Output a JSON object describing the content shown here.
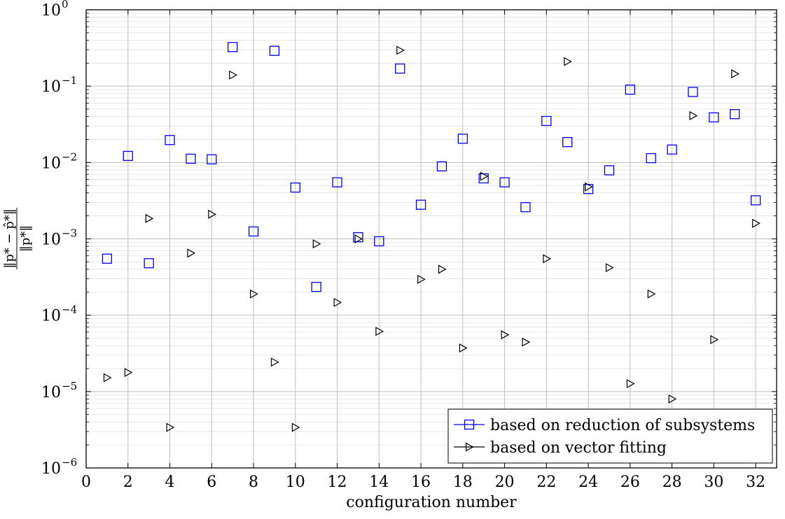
{
  "chart_data": {
    "type": "scatter",
    "xlabel": "configuration number",
    "ylabel": {
      "numerator": "‖p* − p̂*‖",
      "denominator": "‖p*‖"
    },
    "xlim": [
      0,
      33
    ],
    "ylim": [
      1e-06,
      1
    ],
    "yscale": "log",
    "x_ticks": [
      0,
      2,
      4,
      6,
      8,
      10,
      12,
      14,
      16,
      18,
      20,
      22,
      24,
      26,
      28,
      30,
      32
    ],
    "y_ticks": [
      {
        "base": "10",
        "exp": "0",
        "value": 1
      },
      {
        "base": "10",
        "exp": "−1",
        "value": 0.1
      },
      {
        "base": "10",
        "exp": "−2",
        "value": 0.01
      },
      {
        "base": "10",
        "exp": "−3",
        "value": 0.001
      },
      {
        "base": "10",
        "exp": "−4",
        "value": 0.0001
      },
      {
        "base": "10",
        "exp": "−5",
        "value": 1e-05
      },
      {
        "base": "10",
        "exp": "−6",
        "value": 1e-06
      }
    ],
    "grid": true,
    "legend_position": "bottom-right",
    "series": [
      {
        "name": "based on reduction of subsystems",
        "marker": "square",
        "color": "#0000ff",
        "x": [
          1,
          2,
          3,
          4,
          5,
          6,
          7,
          8,
          9,
          10,
          11,
          12,
          13,
          14,
          15,
          16,
          17,
          18,
          19,
          20,
          21,
          22,
          23,
          24,
          25,
          26,
          27,
          28,
          29,
          30,
          31,
          32
        ],
        "y": [
          0.00055,
          0.0122,
          0.00048,
          0.0197,
          0.0112,
          0.011,
          0.325,
          0.00125,
          0.29,
          0.0047,
          0.000235,
          0.0055,
          0.00105,
          0.00093,
          0.17,
          0.0028,
          0.0089,
          0.0205,
          0.0062,
          0.0055,
          0.0026,
          0.035,
          0.0185,
          0.0045,
          0.0079,
          0.09,
          0.0114,
          0.0148,
          0.084,
          0.039,
          0.043,
          0.0032
        ]
      },
      {
        "name": "based on vector fitting",
        "marker": "triangle-right",
        "color": "#000000",
        "x": [
          1,
          2,
          3,
          4,
          5,
          6,
          7,
          8,
          9,
          10,
          11,
          12,
          13,
          14,
          15,
          16,
          17,
          18,
          19,
          20,
          21,
          22,
          23,
          24,
          25,
          26,
          27,
          28,
          29,
          30,
          31,
          32
        ],
        "y": [
          1.52e-05,
          1.78e-05,
          0.00185,
          3.4e-06,
          0.00065,
          0.0021,
          0.14,
          0.00019,
          2.43e-05,
          3.4e-06,
          0.00086,
          0.000147,
          0.001,
          6.15e-05,
          0.295,
          0.000295,
          0.0004,
          3.72e-05,
          0.0066,
          5.55e-05,
          4.45e-05,
          0.00055,
          0.21,
          0.0048,
          0.00042,
          1.27e-05,
          0.00019,
          8e-06,
          0.041,
          4.8e-05,
          0.145,
          0.0016
        ]
      }
    ]
  }
}
